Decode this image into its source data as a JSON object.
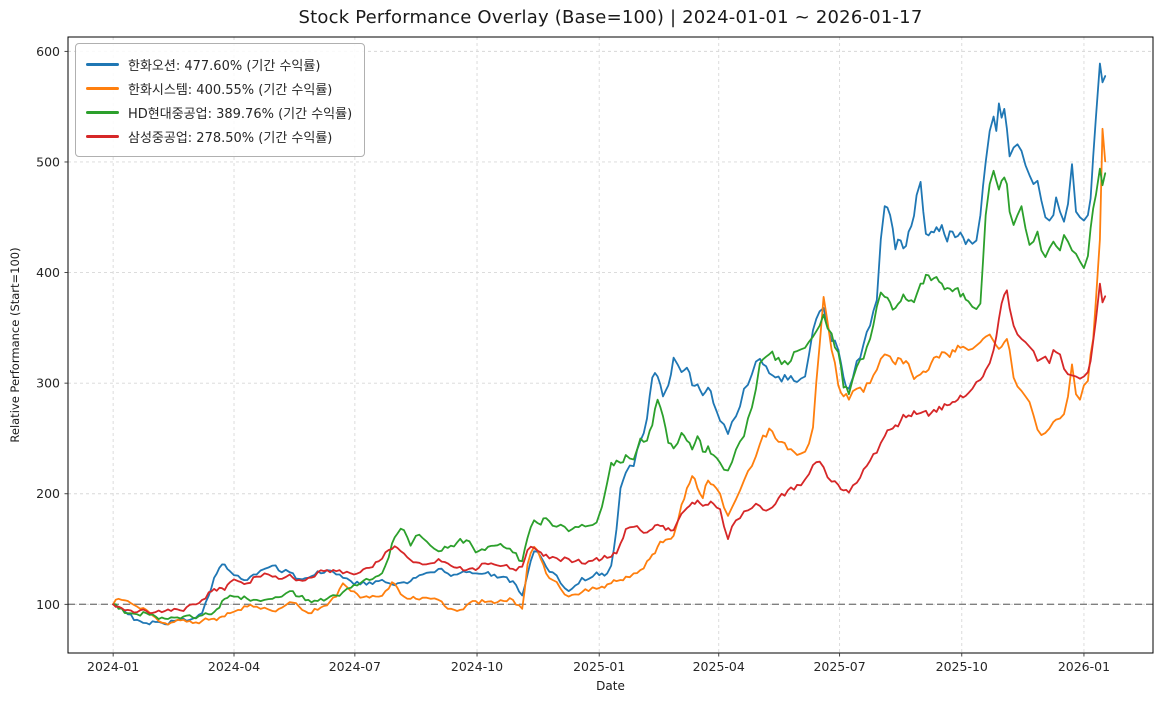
{
  "page": {
    "title": "Stock Performance Overlay (Base=100) | 2024-01-01 ~ 2026-01-17"
  },
  "chart_data": {
    "type": "line",
    "title": "Stock Performance Overlay (Base=100) | 2024-01-01 ~ 2026-01-17",
    "xlabel": "Date",
    "ylabel": "Relative Performance (Start=100)",
    "date_range": {
      "start": "2024-01-01",
      "end": "2026-01-17"
    },
    "base_value": 100,
    "baseline": 100,
    "grid": true,
    "legend_position": "upper-left",
    "xlim": [
      "2023-11-28",
      "2026-02-22"
    ],
    "ylim": [
      56,
      613
    ],
    "yticks": [
      100,
      200,
      300,
      400,
      500,
      600
    ],
    "xticks": [
      {
        "label": "2024-01",
        "date": "2024-01-01"
      },
      {
        "label": "2024-04",
        "date": "2024-04-01"
      },
      {
        "label": "2024-07",
        "date": "2024-07-01"
      },
      {
        "label": "2024-10",
        "date": "2024-10-01"
      },
      {
        "label": "2025-01",
        "date": "2025-01-01"
      },
      {
        "label": "2025-04",
        "date": "2025-04-01"
      },
      {
        "label": "2025-07",
        "date": "2025-07-01"
      },
      {
        "label": "2025-10",
        "date": "2025-10-01"
      },
      {
        "label": "2026-01",
        "date": "2026-01-01"
      }
    ],
    "colors": {
      "grid": "#d8d8d8",
      "baseline": "#808080",
      "spine": "#000000",
      "tick_text": "#262626"
    },
    "series": [
      {
        "name": "한화오션",
        "legend_label": "한화오션: 477.60% (기간 수익률)",
        "return_pct": 477.6,
        "final_value": 577.6,
        "color": "#1f77b4"
      },
      {
        "name": "한화시스템",
        "legend_label": "한화시스템: 400.55% (기간 수익률)",
        "return_pct": 400.55,
        "final_value": 500.55,
        "color": "#ff7f0e"
      },
      {
        "name": "HD현대중공업",
        "legend_label": "HD현대중공업: 389.76% (기간 수익률)",
        "return_pct": 389.76,
        "final_value": 489.76,
        "color": "#2ca02c"
      },
      {
        "name": "삼성중공업",
        "legend_label": "삼성중공업: 278.50% (기간 수익률)",
        "return_pct": 278.5,
        "final_value": 378.5,
        "color": "#d62728"
      }
    ],
    "columns": [
      "date",
      "한화오션",
      "한화시스템",
      "HD현대중공업",
      "삼성중공업"
    ],
    "points": [
      [
        "2024-01-01",
        100,
        100,
        100,
        100
      ],
      [
        "2024-01-05",
        97,
        105,
        96,
        98
      ],
      [
        "2024-01-12",
        91,
        103,
        92,
        95
      ],
      [
        "2024-01-19",
        86,
        98,
        91,
        93
      ],
      [
        "2024-01-26",
        83,
        95,
        92,
        94
      ],
      [
        "2024-02-02",
        84,
        88,
        89,
        93
      ],
      [
        "2024-02-09",
        82,
        83,
        87,
        94
      ],
      [
        "2024-02-16",
        85,
        84,
        88,
        96
      ],
      [
        "2024-02-23",
        87,
        86,
        89,
        94
      ],
      [
        "2024-03-01",
        87,
        83,
        88,
        100
      ],
      [
        "2024-03-08",
        92,
        85,
        90,
        104
      ],
      [
        "2024-03-13",
        108,
        86,
        91,
        111
      ],
      [
        "2024-03-17",
        124,
        87,
        93,
        114
      ],
      [
        "2024-03-21",
        133,
        88,
        97,
        115
      ],
      [
        "2024-03-25",
        136,
        89,
        105,
        113
      ],
      [
        "2024-03-29",
        130,
        92,
        108,
        120
      ],
      [
        "2024-04-04",
        126,
        95,
        107,
        121
      ],
      [
        "2024-04-11",
        122,
        98,
        105,
        119
      ],
      [
        "2024-04-18",
        127,
        98,
        104,
        125
      ],
      [
        "2024-04-24",
        132,
        97,
        104,
        128
      ],
      [
        "2024-04-30",
        135,
        94,
        105,
        125
      ],
      [
        "2024-05-07",
        129,
        97,
        107,
        123
      ],
      [
        "2024-05-13",
        129,
        102,
        112,
        127
      ],
      [
        "2024-05-20",
        123,
        98,
        107,
        122
      ],
      [
        "2024-05-27",
        124,
        92,
        104,
        124
      ],
      [
        "2024-06-03",
        130,
        95,
        103,
        129
      ],
      [
        "2024-06-10",
        131,
        99,
        105,
        131
      ],
      [
        "2024-06-17",
        127,
        107,
        108,
        130
      ],
      [
        "2024-06-22",
        124,
        119,
        111,
        128
      ],
      [
        "2024-06-28",
        121,
        112,
        115,
        128
      ],
      [
        "2024-07-05",
        118,
        106,
        119,
        129
      ],
      [
        "2024-07-12",
        120,
        106,
        122,
        133
      ],
      [
        "2024-07-19",
        121,
        107,
        126,
        139
      ],
      [
        "2024-07-24",
        120,
        112,
        135,
        147
      ],
      [
        "2024-07-29",
        118,
        120,
        155,
        150
      ],
      [
        "2024-08-02",
        119,
        115,
        164,
        151
      ],
      [
        "2024-08-07",
        120,
        107,
        167,
        146
      ],
      [
        "2024-08-12",
        121,
        105,
        153,
        140
      ],
      [
        "2024-08-16",
        124,
        105,
        162,
        138
      ],
      [
        "2024-08-21",
        127,
        106,
        160,
        136
      ],
      [
        "2024-08-27",
        129,
        105,
        153,
        137
      ],
      [
        "2024-09-02",
        132,
        104,
        148,
        141
      ],
      [
        "2024-09-09",
        128,
        96,
        151,
        137
      ],
      [
        "2024-09-16",
        127,
        94,
        156,
        133
      ],
      [
        "2024-09-23",
        129,
        99,
        158,
        131
      ],
      [
        "2024-09-30",
        128,
        103,
        147,
        131
      ],
      [
        "2024-10-07",
        128,
        102,
        149,
        137
      ],
      [
        "2024-10-14",
        127,
        101,
        153,
        136
      ],
      [
        "2024-10-21",
        125,
        103,
        152,
        135
      ],
      [
        "2024-10-28",
        121,
        104,
        147,
        132
      ],
      [
        "2024-11-04",
        108,
        96,
        139,
        134
      ],
      [
        "2024-11-08",
        127,
        136,
        160,
        149
      ],
      [
        "2024-11-13",
        148,
        152,
        176,
        151
      ],
      [
        "2024-11-18",
        143,
        141,
        172,
        147
      ],
      [
        "2024-11-22",
        134,
        128,
        178,
        145
      ],
      [
        "2024-11-27",
        129,
        122,
        171,
        143
      ],
      [
        "2024-12-03",
        119,
        114,
        172,
        139
      ],
      [
        "2024-12-09",
        112,
        107,
        166,
        141
      ],
      [
        "2024-12-14",
        117,
        109,
        170,
        139
      ],
      [
        "2024-12-19",
        124,
        111,
        172,
        137
      ],
      [
        "2024-12-24",
        123,
        112,
        171,
        139
      ],
      [
        "2024-12-30",
        129,
        114,
        174,
        142
      ],
      [
        "2025-01-03",
        128,
        116,
        188,
        141
      ],
      [
        "2025-01-07",
        128,
        118,
        210,
        142
      ],
      [
        "2025-01-10",
        135,
        119,
        228,
        143
      ],
      [
        "2025-01-14",
        168,
        121,
        230,
        146
      ],
      [
        "2025-01-17",
        205,
        122,
        228,
        155
      ],
      [
        "2025-01-21",
        219,
        125,
        235,
        168
      ],
      [
        "2025-01-27",
        225,
        128,
        231,
        170
      ],
      [
        "2025-02-01",
        248,
        131,
        250,
        167
      ],
      [
        "2025-02-06",
        268,
        139,
        248,
        165
      ],
      [
        "2025-02-10",
        305,
        145,
        262,
        168
      ],
      [
        "2025-02-14",
        306,
        152,
        285,
        172
      ],
      [
        "2025-02-18",
        288,
        156,
        270,
        171
      ],
      [
        "2025-02-22",
        298,
        159,
        246,
        169
      ],
      [
        "2025-02-26",
        323,
        162,
        241,
        167
      ],
      [
        "2025-03-04",
        310,
        190,
        255,
        182
      ],
      [
        "2025-03-08",
        314,
        205,
        248,
        187
      ],
      [
        "2025-03-12",
        298,
        216,
        240,
        192
      ],
      [
        "2025-03-16",
        299,
        205,
        252,
        194
      ],
      [
        "2025-03-20",
        289,
        196,
        238,
        189
      ],
      [
        "2025-03-24",
        296,
        212,
        243,
        190
      ],
      [
        "2025-03-28",
        282,
        208,
        235,
        191
      ],
      [
        "2025-04-02",
        266,
        200,
        228,
        186
      ],
      [
        "2025-04-08",
        254,
        180,
        221,
        159
      ],
      [
        "2025-04-14",
        270,
        195,
        240,
        176
      ],
      [
        "2025-04-20",
        295,
        212,
        252,
        184
      ],
      [
        "2025-04-26",
        308,
        225,
        278,
        187
      ],
      [
        "2025-05-02",
        322,
        245,
        318,
        189
      ],
      [
        "2025-05-09",
        309,
        259,
        326,
        186
      ],
      [
        "2025-05-16",
        306,
        247,
        323,
        196
      ],
      [
        "2025-05-23",
        303,
        240,
        317,
        203
      ],
      [
        "2025-05-30",
        301,
        235,
        329,
        208
      ],
      [
        "2025-06-05",
        306,
        238,
        332,
        213
      ],
      [
        "2025-06-11",
        348,
        260,
        342,
        226
      ],
      [
        "2025-06-16",
        365,
        335,
        352,
        229
      ],
      [
        "2025-06-19",
        368,
        378,
        362,
        224
      ],
      [
        "2025-06-25",
        338,
        330,
        345,
        211
      ],
      [
        "2025-06-30",
        330,
        298,
        328,
        208
      ],
      [
        "2025-07-04",
        305,
        288,
        296,
        203
      ],
      [
        "2025-07-08",
        295,
        285,
        290,
        201
      ],
      [
        "2025-07-14",
        320,
        295,
        315,
        210
      ],
      [
        "2025-07-19",
        335,
        292,
        322,
        222
      ],
      [
        "2025-07-24",
        352,
        300,
        340,
        230
      ],
      [
        "2025-07-29",
        375,
        312,
        369,
        237
      ],
      [
        "2025-08-01",
        430,
        322,
        382,
        246
      ],
      [
        "2025-08-04",
        460,
        326,
        378,
        252
      ],
      [
        "2025-08-08",
        452,
        324,
        373,
        258
      ],
      [
        "2025-08-12",
        421,
        317,
        368,
        262
      ],
      [
        "2025-08-16",
        429,
        322,
        374,
        266
      ],
      [
        "2025-08-20",
        424,
        320,
        376,
        269
      ],
      [
        "2025-08-24",
        442,
        310,
        375,
        270
      ],
      [
        "2025-08-28",
        470,
        306,
        380,
        272
      ],
      [
        "2025-08-31",
        482,
        308,
        390,
        273
      ],
      [
        "2025-09-04",
        435,
        310,
        398,
        275
      ],
      [
        "2025-09-08",
        437,
        318,
        393,
        273
      ],
      [
        "2025-09-12",
        441,
        324,
        396,
        274
      ],
      [
        "2025-09-16",
        443,
        328,
        390,
        276
      ],
      [
        "2025-09-20",
        428,
        326,
        386,
        280
      ],
      [
        "2025-09-24",
        437,
        330,
        383,
        283
      ],
      [
        "2025-09-28",
        433,
        334,
        386,
        285
      ],
      [
        "2025-10-02",
        432,
        333,
        381,
        287
      ],
      [
        "2025-10-06",
        430,
        330,
        374,
        291
      ],
      [
        "2025-10-09",
        426,
        331,
        369,
        295
      ],
      [
        "2025-10-12",
        429,
        334,
        367,
        301
      ],
      [
        "2025-10-15",
        452,
        337,
        372,
        303
      ],
      [
        "2025-10-17",
        478,
        340,
        410,
        306
      ],
      [
        "2025-10-19",
        500,
        342,
        452,
        312
      ],
      [
        "2025-10-22",
        528,
        344,
        480,
        318
      ],
      [
        "2025-10-25",
        541,
        338,
        492,
        330
      ],
      [
        "2025-10-27",
        528,
        334,
        483,
        342
      ],
      [
        "2025-10-29",
        553,
        331,
        475,
        358
      ],
      [
        "2025-10-31",
        540,
        333,
        483,
        372
      ],
      [
        "2025-11-02",
        548,
        337,
        486,
        380
      ],
      [
        "2025-11-04",
        530,
        340,
        480,
        384
      ],
      [
        "2025-11-06",
        505,
        330,
        455,
        368
      ],
      [
        "2025-11-09",
        513,
        305,
        443,
        352
      ],
      [
        "2025-11-12",
        516,
        297,
        452,
        344
      ],
      [
        "2025-11-15",
        510,
        293,
        460,
        340
      ],
      [
        "2025-11-18",
        497,
        288,
        440,
        337
      ],
      [
        "2025-11-21",
        488,
        283,
        425,
        333
      ],
      [
        "2025-11-24",
        480,
        271,
        428,
        329
      ],
      [
        "2025-11-27",
        483,
        258,
        437,
        320
      ],
      [
        "2025-11-30",
        465,
        253,
        420,
        322
      ],
      [
        "2025-12-03",
        450,
        255,
        414,
        324
      ],
      [
        "2025-12-06",
        447,
        259,
        422,
        318
      ],
      [
        "2025-12-09",
        452,
        265,
        428,
        330
      ],
      [
        "2025-12-11",
        468,
        267,
        424,
        328
      ],
      [
        "2025-12-14",
        455,
        268,
        420,
        326
      ],
      [
        "2025-12-17",
        446,
        272,
        434,
        313
      ],
      [
        "2025-12-20",
        462,
        288,
        428,
        308
      ],
      [
        "2025-12-23",
        498,
        317,
        420,
        307
      ],
      [
        "2025-12-26",
        455,
        290,
        417,
        306
      ],
      [
        "2025-12-29",
        450,
        285,
        410,
        304
      ],
      [
        "2026-01-01",
        447,
        298,
        404,
        306
      ],
      [
        "2026-01-04",
        452,
        302,
        415,
        310
      ],
      [
        "2026-01-06",
        467,
        326,
        440,
        320
      ],
      [
        "2026-01-08",
        505,
        340,
        458,
        338
      ],
      [
        "2026-01-10",
        540,
        375,
        470,
        357
      ],
      [
        "2026-01-13",
        589,
        430,
        494,
        390
      ],
      [
        "2026-01-15",
        572,
        530,
        479,
        373
      ],
      [
        "2026-01-17",
        577.6,
        500.55,
        489.76,
        378.5
      ]
    ]
  }
}
